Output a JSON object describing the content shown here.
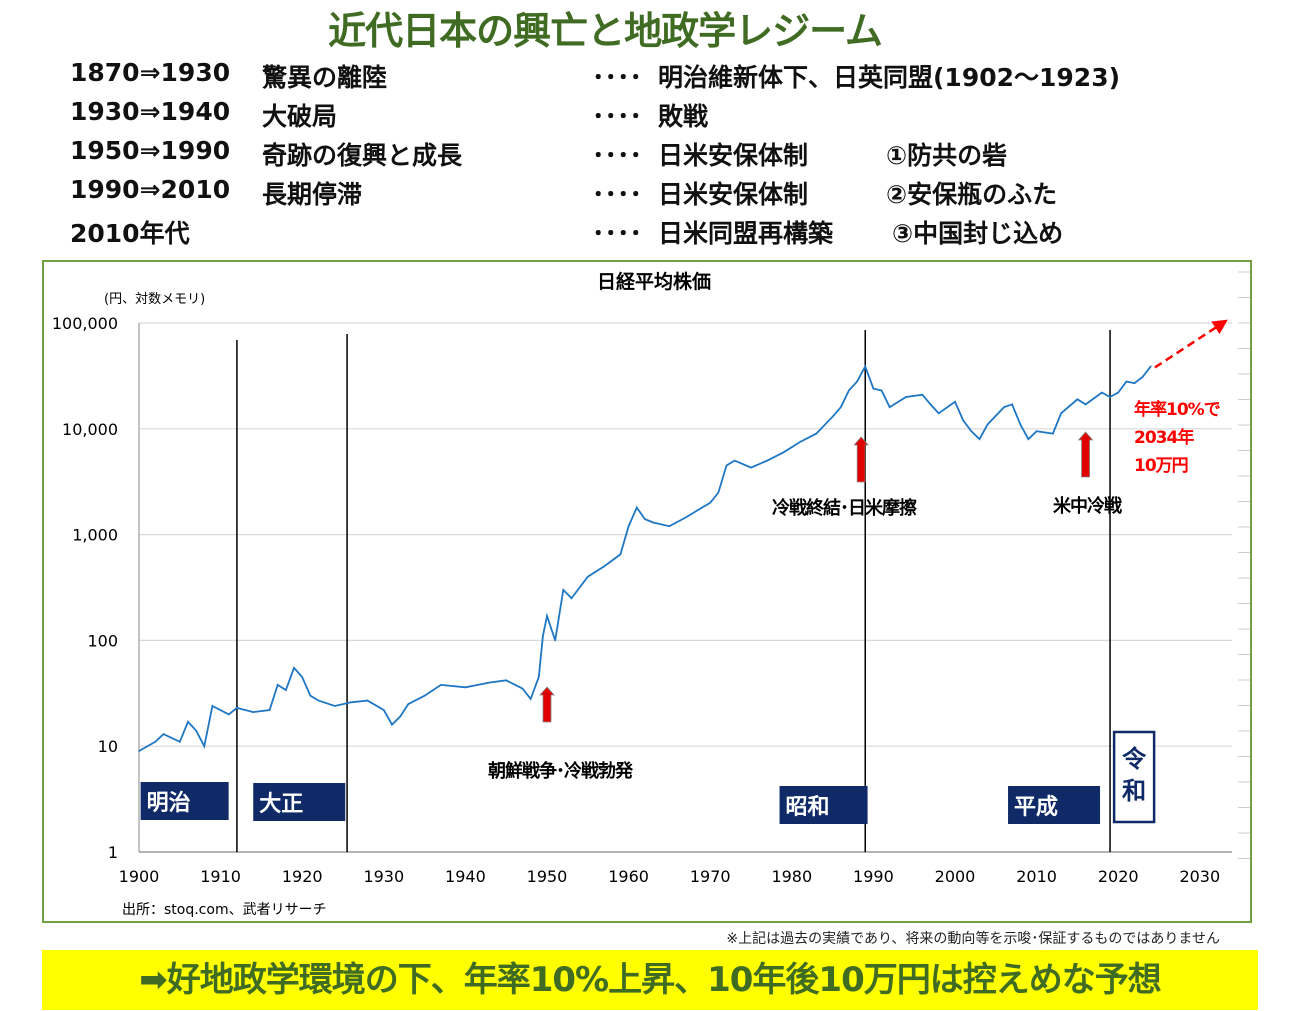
{
  "title": "近代日本の興亡と地政学レジーム",
  "timeline": [
    {
      "period": "1870⇒1930",
      "phase": "驚異の離陸",
      "dots": "････",
      "regime": "明治維新体下、日英同盟(1902～1923)",
      "note": ""
    },
    {
      "period": "1930⇒1940",
      "phase": "大破局",
      "dots": "････",
      "regime": "敗戦",
      "note": ""
    },
    {
      "period": "1950⇒1990",
      "phase": "奇跡の復興と成長",
      "dots": "････",
      "regime": "日米安保体制",
      "note": "①防共の砦"
    },
    {
      "period": "1990⇒2010",
      "phase": "長期停滞",
      "dots": "････",
      "regime": "日米安保体制",
      "note": "②安保瓶のふた"
    },
    {
      "period": "2010年代",
      "phase": "",
      "dots": "････",
      "regime": "日米同盟再構築",
      "note": "③中国封じ込め"
    }
  ],
  "chart_data": {
    "type": "line",
    "title": "日経平均株価",
    "ylabel": "(円、対数メモリ)",
    "yscale": "log",
    "ylim": [
      1,
      100000
    ],
    "xlim": [
      1900,
      2030
    ],
    "xticks": [
      "1900",
      "1910",
      "1920",
      "1930",
      "1940",
      "1950",
      "1960",
      "1970",
      "1980",
      "1990",
      "2000",
      "2010",
      "2020",
      "2030"
    ],
    "yticks": [
      "100,000",
      "10,000",
      "1,000",
      "100",
      "10",
      "1"
    ],
    "grid": true,
    "series": [
      {
        "name": "日経平均株価",
        "color": "#1f77c4",
        "x": [
          1900,
          1902,
          1903,
          1905,
          1906,
          1907,
          1908,
          1909,
          1911,
          1912,
          1914,
          1916,
          1917,
          1918,
          1919,
          1920,
          1921,
          1922,
          1924,
          1926,
          1928,
          1930,
          1931,
          1932,
          1933,
          1935,
          1937,
          1940,
          1943,
          1945,
          1947,
          1948,
          1949,
          1949.5,
          1950,
          1951,
          1952,
          1953,
          1955,
          1957,
          1959,
          1960,
          1961,
          1962,
          1963,
          1965,
          1967,
          1969,
          1970,
          1971,
          1972,
          1973,
          1975,
          1977,
          1979,
          1981,
          1983,
          1985,
          1986,
          1987,
          1988,
          1989,
          1990,
          1991,
          1992,
          1994,
          1996,
          1997,
          1998,
          2000,
          2001,
          2002,
          2003,
          2004,
          2006,
          2007,
          2008,
          2009,
          2010,
          2012,
          2013,
          2015,
          2016,
          2018,
          2019,
          2020,
          2021,
          2022,
          2023,
          2024
        ],
        "y": [
          9,
          11,
          13,
          11,
          17,
          14,
          10,
          24,
          20,
          23,
          21,
          22,
          38,
          34,
          55,
          45,
          30,
          27,
          24,
          26,
          27,
          22,
          16,
          19,
          25,
          30,
          38,
          36,
          40,
          42,
          35,
          28,
          45,
          110,
          170,
          100,
          300,
          250,
          400,
          500,
          650,
          1200,
          1800,
          1400,
          1300,
          1200,
          1450,
          1800,
          2000,
          2500,
          4500,
          5000,
          4300,
          5000,
          6000,
          7500,
          9000,
          13000,
          16000,
          23000,
          28000,
          38900,
          24000,
          23000,
          16000,
          20000,
          21000,
          17000,
          14000,
          18000,
          12000,
          9500,
          8000,
          11000,
          16000,
          17000,
          11000,
          8000,
          9500,
          9000,
          14000,
          19000,
          17000,
          22000,
          20000,
          22000,
          28000,
          27000,
          31000,
          39000
        ]
      }
    ],
    "vlines": [
      1912,
      1925.5,
      1989,
      2019
    ],
    "eras": [
      {
        "label": "明治",
        "year": 1900.2
      },
      {
        "label": "大正",
        "year": 1914
      },
      {
        "label": "昭和",
        "year": 1978.5
      },
      {
        "label": "平成",
        "year": 2006.5
      },
      {
        "label": "令和",
        "year": 2019.5
      }
    ],
    "annotations": [
      {
        "text": "朝鮮戦争･冷戦勃発",
        "year": 1950
      },
      {
        "text": "冷戦終結･日米摩擦",
        "year": 1988.5
      },
      {
        "text": "米中冷戦",
        "year": 2016
      }
    ],
    "forecast": {
      "text": [
        "年率10%で",
        "2034年",
        "10万円"
      ],
      "color": "#ff0000"
    },
    "source": "出所：stoq.com、武者リサーチ"
  },
  "disclaimer": "※上記は過去の実績であり、将来の動向等を示唆･保証するものではありません",
  "banner": "➡好地政学環境の下、年率10%上昇、10年後10万円は控えめな予想"
}
